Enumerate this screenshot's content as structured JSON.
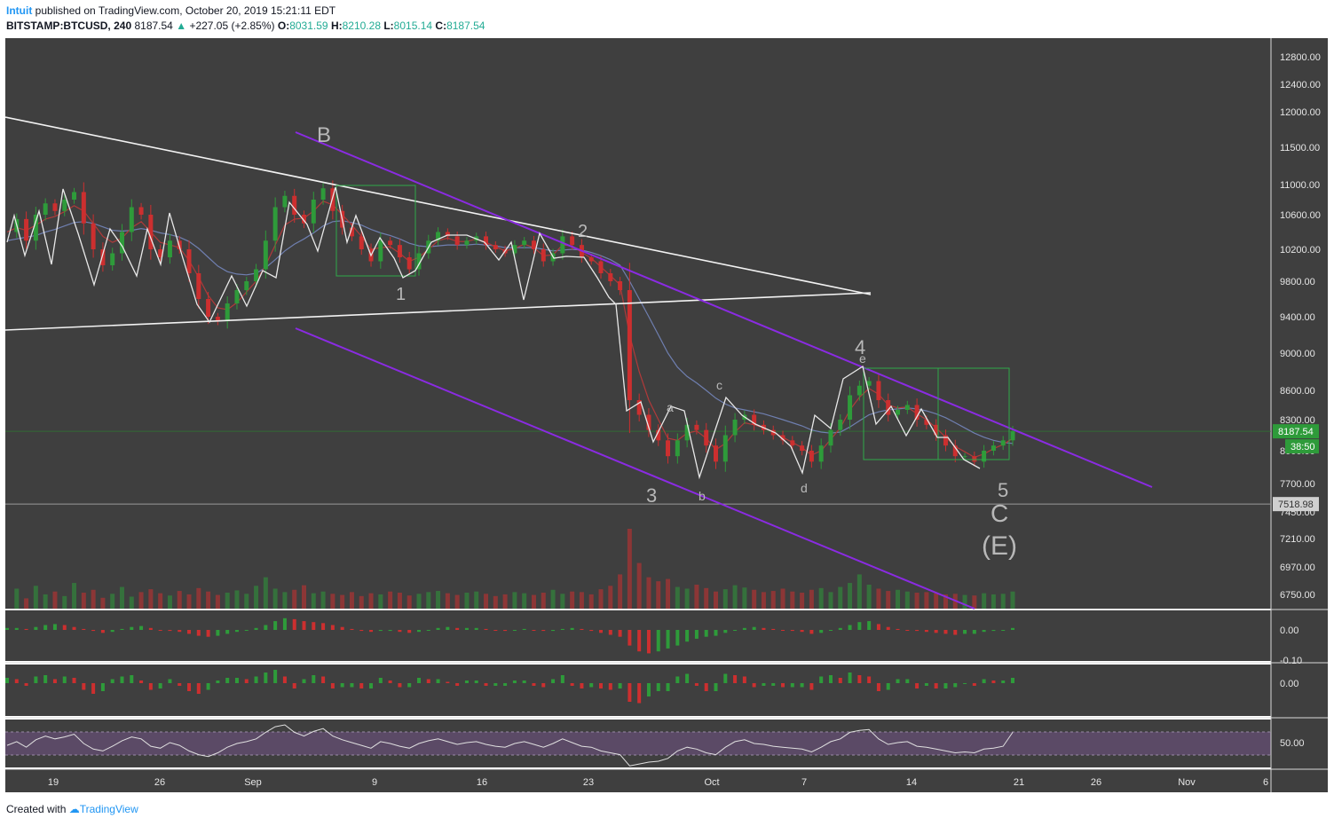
{
  "header": {
    "author": "Intuit",
    "published_text": "published on TradingView.com, October 20, 2019 15:21:11 EDT",
    "symbol": "BITSTAMP:BTCUSD, 240",
    "last": "8187.54",
    "change_arrow": "▲",
    "change": "+227.05 (+2.85%)",
    "o_label": "O:",
    "o_value": "8031.59",
    "h_label": "H:",
    "h_value": "8210.28",
    "l_label": "L:",
    "l_value": "8015.14",
    "c_label": "C:",
    "c_value": "8187.54"
  },
  "footer": {
    "created_with": "Created with",
    "brand": "TradingView"
  },
  "colors": {
    "background": "#3f3f3f",
    "bull": "#2e9b3a",
    "bear": "#cc2f2f",
    "channel": "#8a2be2",
    "wave_line": "#e8e8e8",
    "label_grey": "#b8b8b8",
    "price_tag": "#2e9b3a",
    "pivot_tag": "#5f5f5f"
  },
  "chart_data": {
    "type": "candlestick",
    "price_axis": {
      "ticks": [
        "12800.00",
        "12400.00",
        "12000.00",
        "11500.00",
        "11000.00",
        "10600.00",
        "10200.00",
        "9800.00",
        "9400.00",
        "9000.00",
        "8600.00",
        "8300.00",
        "8000.00",
        "7700.00",
        "7450.00",
        "7210.00",
        "6970.00",
        "6750.00"
      ],
      "last_price": "8187.54",
      "countdown": "38:50",
      "pivot": "7518.98"
    },
    "time_axis": {
      "ticks": [
        "19",
        "26",
        "Sep",
        "9",
        "16",
        "23",
        "Oct",
        "7",
        "14",
        "21",
        "26",
        "Nov",
        "6"
      ]
    },
    "close_path": [
      10400,
      10550,
      10300,
      10600,
      10750,
      10650,
      10800,
      10900,
      10500,
      10200,
      10000,
      10150,
      10400,
      10700,
      10600,
      10200,
      10100,
      10300,
      10200,
      9900,
      9600,
      9400,
      9350,
      9550,
      9700,
      9800,
      9950,
      10300,
      10700,
      10850,
      10600,
      10500,
      10800,
      10950,
      10650,
      10450,
      10350,
      10200,
      10050,
      10300,
      10250,
      10100,
      9950,
      10150,
      10300,
      10400,
      10350,
      10250,
      10300,
      10350,
      10250,
      10200,
      10150,
      10250,
      10300,
      10200,
      10050,
      10150,
      10350,
      10250,
      10100,
      10050,
      9900,
      9800,
      9700,
      8500,
      8350,
      8200,
      8100,
      7950,
      8100,
      8250,
      8200,
      8050,
      7900,
      8150,
      8300,
      8350,
      8250,
      8200,
      8150,
      8100,
      8050,
      8000,
      7900,
      8050,
      8200,
      8300,
      8550,
      8650,
      8700,
      8500,
      8350,
      8400,
      8450,
      8300,
      8250,
      8150,
      8050,
      7950,
      7950,
      7900,
      8000,
      8050,
      8100,
      8187.54
    ],
    "volume": [
      20,
      35,
      18,
      40,
      25,
      30,
      22,
      45,
      28,
      33,
      19,
      26,
      38,
      21,
      29,
      34,
      27,
      23,
      31,
      25,
      36,
      30,
      24,
      28,
      32,
      26,
      40,
      55,
      35,
      29,
      33,
      41,
      27,
      30,
      26,
      24,
      29,
      22,
      27,
      25,
      30,
      28,
      23,
      26,
      29,
      31,
      27,
      24,
      28,
      30,
      26,
      22,
      25,
      29,
      27,
      24,
      28,
      33,
      26,
      30,
      29,
      25,
      34,
      40,
      60,
      140,
      80,
      55,
      48,
      52,
      38,
      35,
      42,
      36,
      30,
      34,
      41,
      37,
      33,
      29,
      31,
      35,
      30,
      28,
      33,
      36,
      29,
      38,
      45,
      60,
      42,
      35,
      31,
      33,
      30,
      28,
      29,
      27,
      25,
      26,
      24,
      23,
      27,
      25,
      26,
      30
    ],
    "ma_fast": [
      10400,
      10450,
      10420,
      10480,
      10550,
      10580,
      10640,
      10720,
      10650,
      10500,
      10350,
      10280,
      10330,
      10450,
      10520,
      10400,
      10280,
      10250,
      10220,
      10060,
      9850,
      9640,
      9500,
      9480,
      9560,
      9680,
      9800,
      10000,
      10250,
      10480,
      10550,
      10560,
      10650,
      10780,
      10730,
      10600,
      10480,
      10350,
      10200,
      10220,
      10230,
      10150,
      10050,
      10100,
      10200,
      10300,
      10330,
      10290,
      10290,
      10320,
      10280,
      10230,
      10180,
      10210,
      10260,
      10220,
      10120,
      10130,
      10250,
      10240,
      10160,
      10090,
      9980,
      9870,
      9760,
      9200,
      8800,
      8500,
      8300,
      8120,
      8100,
      8170,
      8190,
      8120,
      8010,
      8070,
      8180,
      8270,
      8250,
      8220,
      8180,
      8130,
      8080,
      8030,
      7960,
      8000,
      8110,
      8220,
      8400,
      8530,
      8620,
      8560,
      8450,
      8420,
      8430,
      8360,
      8300,
      8220,
      8130,
      8040,
      7990,
      7940,
      7970,
      8020,
      8060,
      8120
    ],
    "ma_slow": [
      10300,
      10320,
      10340,
      10360,
      10400,
      10430,
      10470,
      10510,
      10520,
      10500,
      10460,
      10420,
      10410,
      10420,
      10440,
      10420,
      10390,
      10370,
      10340,
      10290,
      10210,
      10100,
      9990,
      9920,
      9890,
      9880,
      9900,
      9970,
      10070,
      10180,
      10260,
      10320,
      10390,
      10470,
      10520,
      10530,
      10510,
      10480,
      10430,
      10390,
      10360,
      10320,
      10270,
      10240,
      10230,
      10240,
      10250,
      10250,
      10250,
      10260,
      10250,
      10240,
      10220,
      10220,
      10220,
      10220,
      10200,
      10180,
      10190,
      10200,
      10190,
      10160,
      10120,
      10070,
      10000,
      9800,
      9600,
      9400,
      9200,
      9000,
      8850,
      8750,
      8680,
      8600,
      8520,
      8460,
      8420,
      8400,
      8380,
      8360,
      8330,
      8300,
      8270,
      8240,
      8200,
      8180,
      8170,
      8180,
      8230,
      8290,
      8350,
      8380,
      8400,
      8410,
      8420,
      8410,
      8390,
      8360,
      8320,
      8270,
      8220,
      8170,
      8130,
      8100,
      8080,
      8070
    ],
    "wave_labels": [
      "B",
      "1",
      "2",
      "3",
      "a",
      "b",
      "c",
      "d",
      "4",
      "e",
      "5",
      "C",
      "(E)"
    ],
    "oscillators": [
      {
        "name": "macd_hist_1",
        "zero_label": "0.00",
        "bottom_label": "-0.10",
        "values": [
          0.02,
          0.02,
          0.01,
          0.03,
          0.05,
          0.06,
          0.05,
          0.03,
          0.01,
          -0.01,
          -0.03,
          -0.02,
          0.01,
          0.03,
          0.04,
          0.02,
          0.0,
          -0.01,
          -0.02,
          -0.04,
          -0.06,
          -0.07,
          -0.06,
          -0.04,
          -0.02,
          0.0,
          0.02,
          0.05,
          0.09,
          0.12,
          0.11,
          0.09,
          0.08,
          0.07,
          0.05,
          0.03,
          0.01,
          -0.01,
          -0.02,
          -0.01,
          -0.01,
          -0.02,
          -0.03,
          -0.02,
          0.0,
          0.02,
          0.03,
          0.02,
          0.02,
          0.02,
          0.01,
          0.0,
          -0.01,
          0.0,
          0.01,
          0.0,
          -0.01,
          -0.01,
          0.01,
          0.02,
          0.01,
          -0.01,
          -0.03,
          -0.05,
          -0.07,
          -0.16,
          -0.22,
          -0.24,
          -0.22,
          -0.19,
          -0.16,
          -0.12,
          -0.09,
          -0.07,
          -0.06,
          -0.03,
          0.0,
          0.02,
          0.03,
          0.02,
          0.01,
          0.0,
          -0.01,
          -0.02,
          -0.04,
          -0.03,
          0.0,
          0.02,
          0.05,
          0.08,
          0.09,
          0.06,
          0.03,
          0.01,
          0.0,
          -0.01,
          -0.02,
          -0.03,
          -0.04,
          -0.05,
          -0.04,
          -0.04,
          -0.02,
          -0.01,
          0.0,
          0.02
        ]
      },
      {
        "name": "macd_hist_2",
        "zero_label": "0.00",
        "values": [
          0.04,
          0.03,
          -0.02,
          0.05,
          0.06,
          0.03,
          0.05,
          0.04,
          -0.05,
          -0.08,
          -0.06,
          0.03,
          0.05,
          0.06,
          0.02,
          -0.05,
          -0.04,
          0.03,
          -0.02,
          -0.06,
          -0.08,
          -0.05,
          0.02,
          0.04,
          0.04,
          0.03,
          0.05,
          0.08,
          0.1,
          0.05,
          -0.04,
          0.03,
          0.06,
          0.05,
          -0.04,
          -0.03,
          -0.03,
          -0.04,
          -0.04,
          0.04,
          0.02,
          -0.03,
          -0.03,
          0.04,
          0.03,
          0.03,
          0.01,
          -0.02,
          0.02,
          0.02,
          -0.02,
          -0.02,
          -0.02,
          0.02,
          0.02,
          -0.02,
          -0.03,
          0.03,
          0.06,
          -0.02,
          -0.04,
          -0.03,
          -0.04,
          -0.05,
          -0.04,
          -0.14,
          -0.15,
          -0.1,
          -0.06,
          -0.06,
          0.05,
          0.07,
          -0.02,
          -0.06,
          -0.06,
          0.07,
          0.06,
          0.05,
          -0.03,
          -0.02,
          -0.02,
          -0.03,
          -0.03,
          -0.03,
          -0.05,
          0.05,
          0.06,
          0.04,
          0.08,
          0.06,
          0.05,
          -0.06,
          -0.05,
          0.03,
          0.03,
          -0.04,
          -0.02,
          -0.04,
          -0.04,
          -0.03,
          0.0,
          -0.02,
          0.03,
          0.02,
          0.02,
          0.04
        ]
      },
      {
        "name": "rsi",
        "mid_label": "50.00",
        "values": [
          48,
          52,
          46,
          54,
          58,
          55,
          57,
          60,
          50,
          44,
          42,
          47,
          53,
          57,
          55,
          47,
          45,
          51,
          48,
          42,
          38,
          36,
          40,
          46,
          50,
          52,
          55,
          62,
          68,
          70,
          62,
          58,
          63,
          66,
          58,
          54,
          51,
          48,
          45,
          52,
          50,
          47,
          45,
          50,
          53,
          55,
          52,
          49,
          51,
          52,
          49,
          47,
          46,
          50,
          52,
          49,
          46,
          50,
          55,
          51,
          47,
          46,
          42,
          40,
          38,
          26,
          28,
          30,
          31,
          34,
          42,
          46,
          44,
          40,
          38,
          46,
          52,
          54,
          50,
          49,
          47,
          46,
          45,
          44,
          41,
          46,
          52,
          55,
          62,
          64,
          65,
          55,
          49,
          51,
          52,
          47,
          46,
          44,
          42,
          40,
          41,
          40,
          44,
          45,
          47,
          62
        ]
      }
    ]
  }
}
